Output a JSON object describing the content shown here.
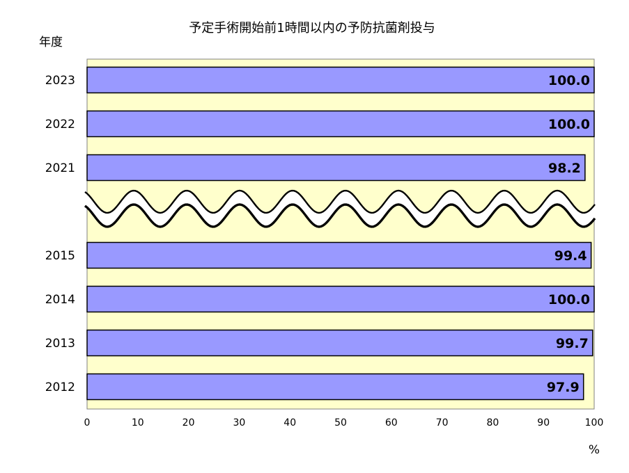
{
  "chart_data": {
    "type": "bar",
    "orientation": "horizontal",
    "title": "予定手術開始前1時間以内の予防抗菌剤投与",
    "ylabel": "年度",
    "xlabel_unit": "%",
    "xlim": [
      0,
      100
    ],
    "x_ticks": [
      "0",
      "10",
      "20",
      "30",
      "40",
      "50",
      "60",
      "70",
      "80",
      "90",
      "100"
    ],
    "categories": [
      "2023",
      "2022",
      "2021",
      "2015",
      "2014",
      "2013",
      "2012"
    ],
    "values": [
      100.0,
      100.0,
      98.2,
      99.4,
      100.0,
      99.7,
      97.9
    ],
    "value_labels": [
      "100.0",
      "100.0",
      "98.2",
      "99.4",
      "100.0",
      "99.7",
      "97.9"
    ],
    "axis_break": "2016–2020 omitted (wavy break)",
    "colors": {
      "plot_background": "#ffffcc",
      "bar_fill": "#9999ff",
      "bar_stroke": "#000000"
    }
  }
}
